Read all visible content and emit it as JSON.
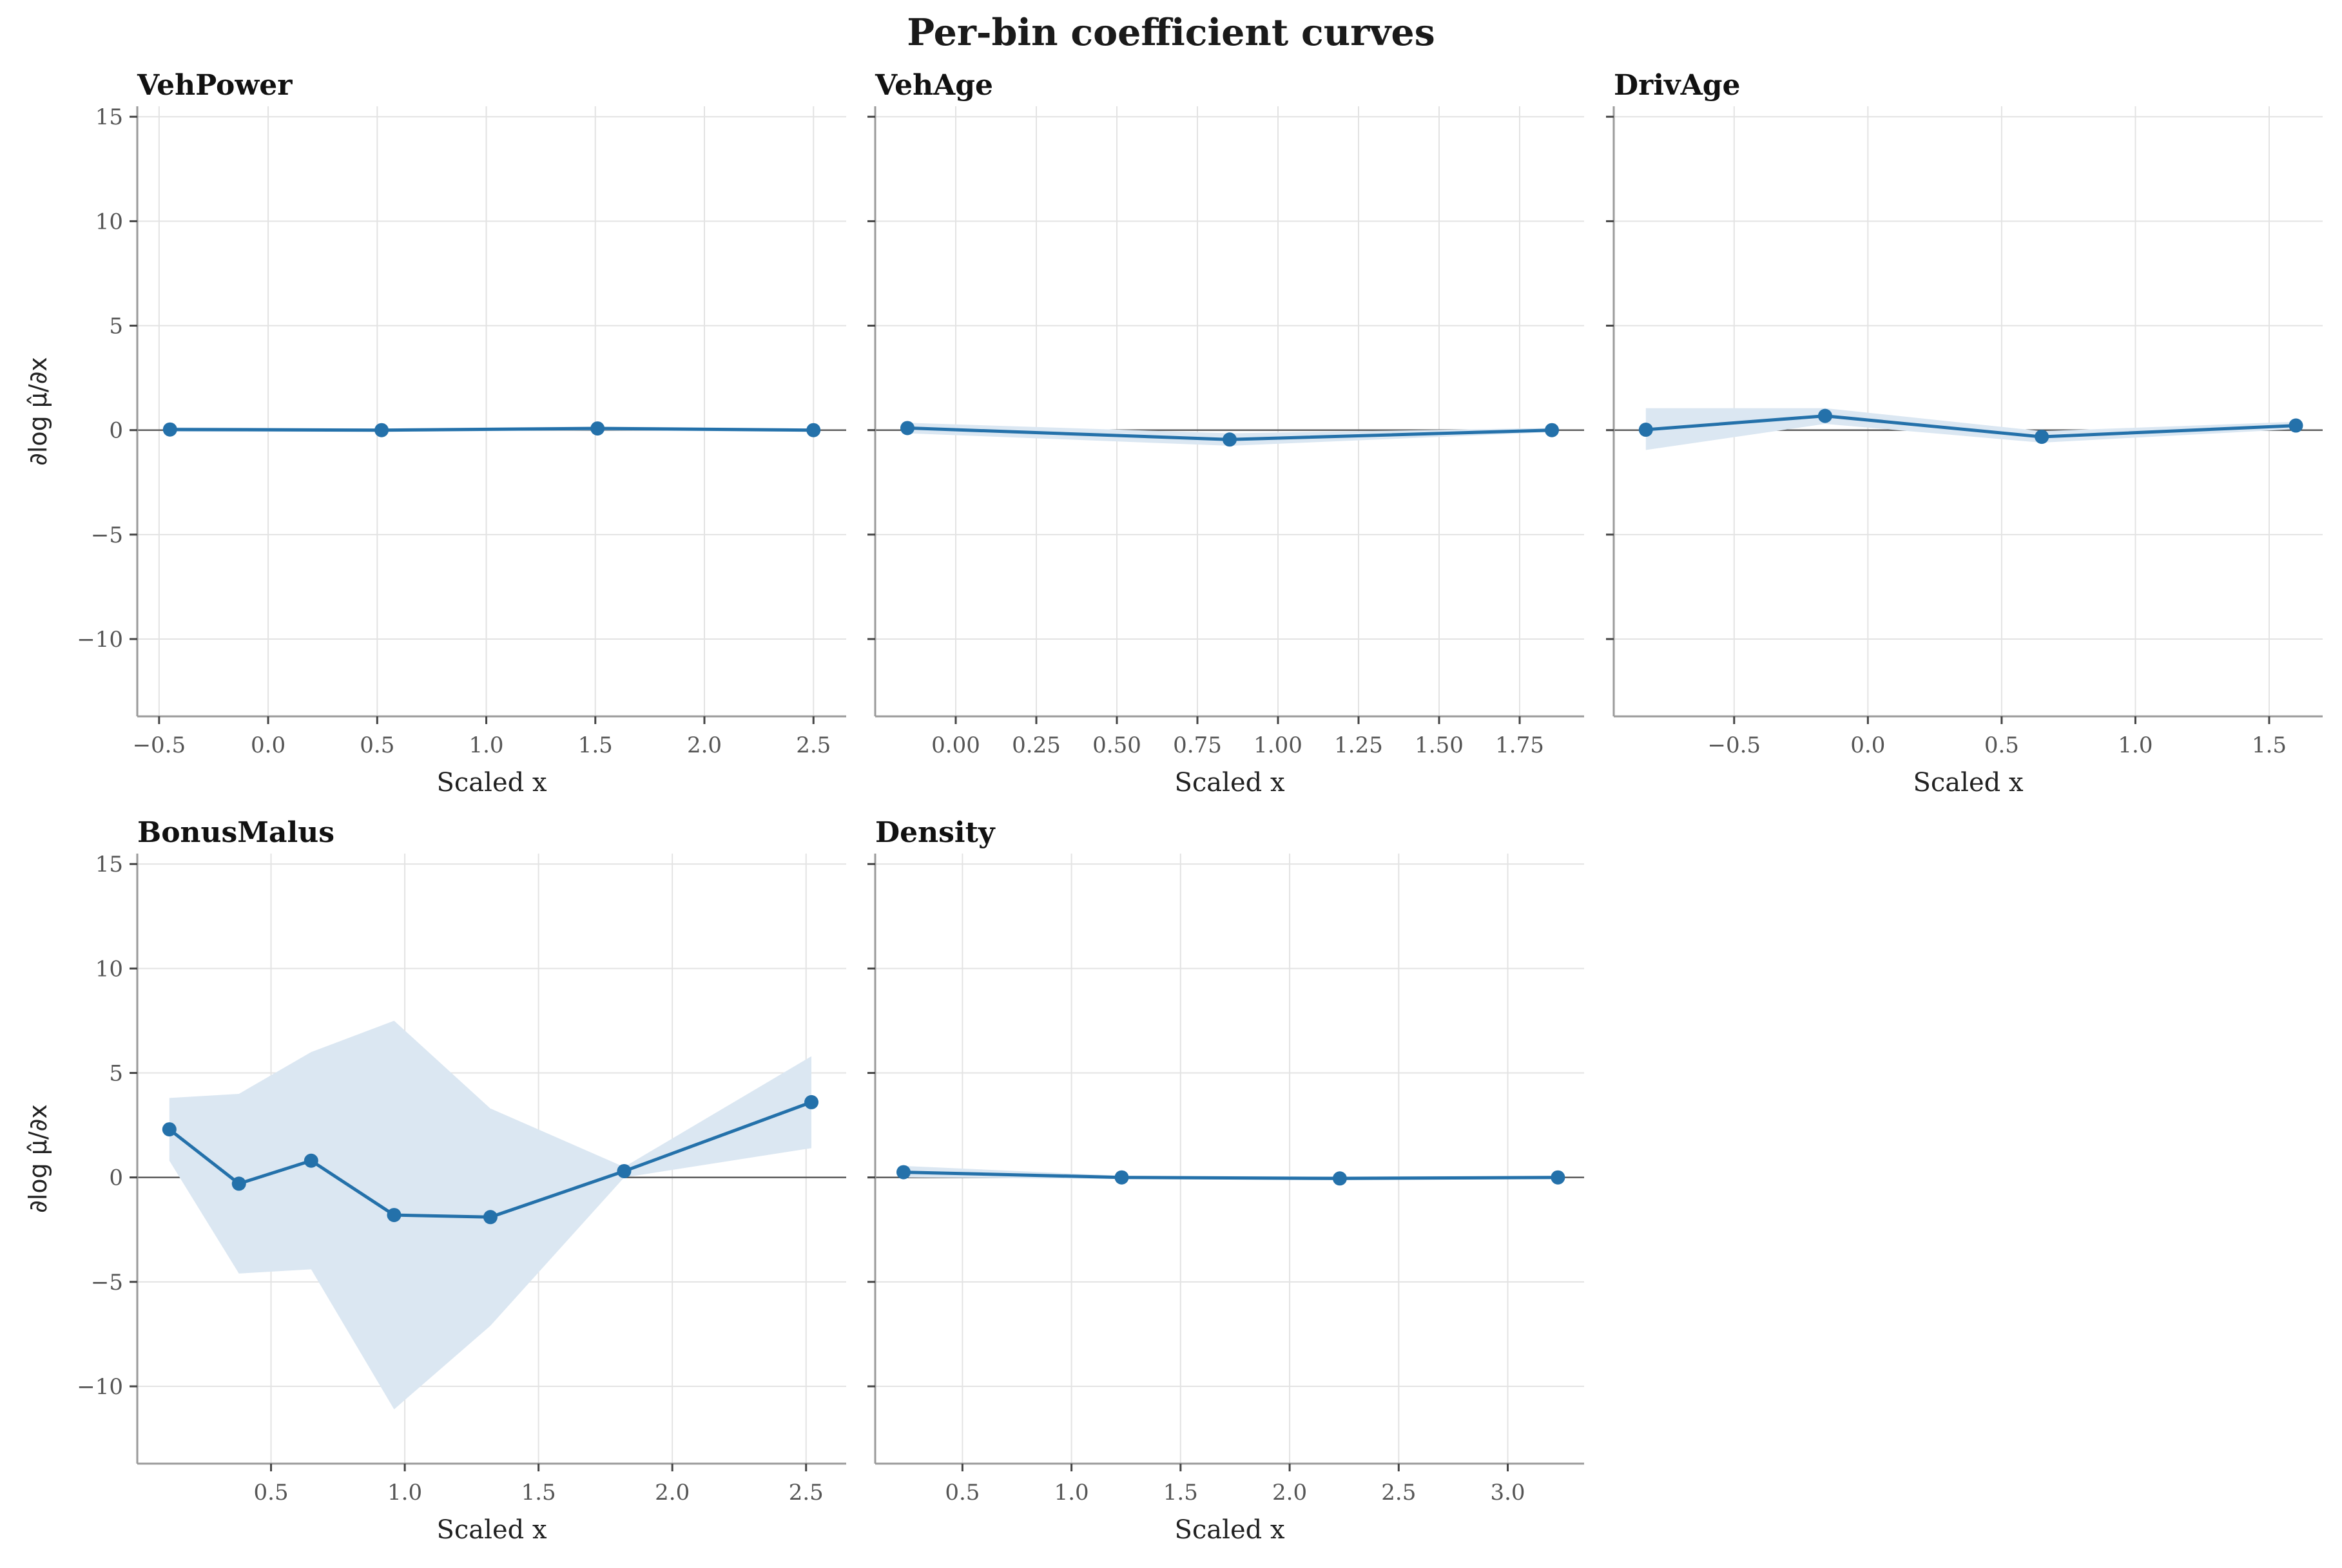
{
  "figure_title": "Per-bin coefficient curves",
  "colors": {
    "line": "#2471aa",
    "band": "#dbe7f2",
    "grid": "#e3e3e3",
    "zero_line": "#555555",
    "spine": "#9a9a9a"
  },
  "chart_data": [
    {
      "type": "line",
      "title": "VehPower",
      "xlabel": "Scaled x",
      "ylabel": "∂log μ̂/∂x",
      "xlim": [
        -0.6,
        2.65
      ],
      "ylim": [
        -13.7,
        15.5
      ],
      "xticks": [
        -0.5,
        0.0,
        0.5,
        1.0,
        1.5,
        2.0,
        2.5
      ],
      "xtick_labels": [
        "−0.5",
        "0.0",
        "0.5",
        "1.0",
        "1.5",
        "2.0",
        "2.5"
      ],
      "yticks": [
        -10,
        -5,
        0,
        5,
        10,
        15
      ],
      "ytick_labels": [
        "−10",
        "−5",
        "0",
        "5",
        "10",
        "15"
      ],
      "x": [
        -0.45,
        0.52,
        1.51,
        2.5
      ],
      "y": [
        0.03,
        0.0,
        0.08,
        0.0
      ],
      "band_lower": [
        -0.08,
        -0.08,
        -0.02,
        -0.08
      ],
      "band_upper": [
        0.14,
        0.08,
        0.18,
        0.08
      ]
    },
    {
      "type": "line",
      "title": "VehAge",
      "xlabel": "Scaled x",
      "ylabel": "",
      "xlim": [
        -0.25,
        1.95
      ],
      "ylim": [
        -13.7,
        15.5
      ],
      "xticks": [
        0.0,
        0.25,
        0.5,
        0.75,
        1.0,
        1.25,
        1.5,
        1.75
      ],
      "xtick_labels": [
        "0.00",
        "0.25",
        "0.50",
        "0.75",
        "1.00",
        "1.25",
        "1.50",
        "1.75"
      ],
      "yticks": [
        -10,
        -5,
        0,
        5,
        10,
        15
      ],
      "ytick_labels": [
        "",
        "",
        "",
        "",
        "",
        ""
      ],
      "x": [
        -0.15,
        0.85,
        1.85
      ],
      "y": [
        0.1,
        -0.45,
        0.0
      ],
      "band_lower": [
        -0.15,
        -0.75,
        -0.1
      ],
      "band_upper": [
        0.35,
        -0.15,
        0.1
      ]
    },
    {
      "type": "line",
      "title": "DrivAge",
      "xlabel": "Scaled x",
      "ylabel": "",
      "xlim": [
        -0.95,
        1.7
      ],
      "ylim": [
        -13.7,
        15.5
      ],
      "xticks": [
        -0.5,
        0.0,
        0.5,
        1.0,
        1.5
      ],
      "xtick_labels": [
        "−0.5",
        "0.0",
        "0.5",
        "1.0",
        "1.5"
      ],
      "yticks": [
        -10,
        -5,
        0,
        5,
        10,
        15
      ],
      "ytick_labels": [
        "",
        "",
        "",
        "",
        "",
        ""
      ],
      "x": [
        -0.83,
        -0.16,
        0.65,
        1.6
      ],
      "y": [
        0.02,
        0.68,
        -0.32,
        0.22
      ],
      "band_lower": [
        -0.95,
        0.3,
        -0.6,
        0.05
      ],
      "band_upper": [
        1.05,
        1.05,
        -0.05,
        0.4
      ]
    },
    {
      "type": "line",
      "title": "BonusMalus",
      "xlabel": "Scaled x",
      "ylabel": "∂log μ̂/∂x",
      "xlim": [
        0.0,
        2.65
      ],
      "ylim": [
        -13.7,
        15.5
      ],
      "xticks": [
        0.5,
        1.0,
        1.5,
        2.0,
        2.5
      ],
      "xtick_labels": [
        "0.5",
        "1.0",
        "1.5",
        "2.0",
        "2.5"
      ],
      "yticks": [
        -10,
        -5,
        0,
        5,
        10,
        15
      ],
      "ytick_labels": [
        "−10",
        "−5",
        "0",
        "5",
        "10",
        "15"
      ],
      "x": [
        0.12,
        0.38,
        0.65,
        0.96,
        1.32,
        1.82,
        2.52
      ],
      "y": [
        2.3,
        -0.3,
        0.8,
        -1.8,
        -1.9,
        0.3,
        3.6
      ],
      "band_lower": [
        0.8,
        -4.6,
        -4.4,
        -11.1,
        -7.1,
        0.0,
        1.4
      ],
      "band_upper": [
        3.8,
        4.0,
        6.0,
        7.5,
        3.3,
        0.5,
        5.8
      ]
    },
    {
      "type": "line",
      "title": "Density",
      "xlabel": "Scaled x",
      "ylabel": "",
      "xlim": [
        0.1,
        3.35
      ],
      "ylim": [
        -13.7,
        15.5
      ],
      "xticks": [
        0.5,
        1.0,
        1.5,
        2.0,
        2.5,
        3.0
      ],
      "xtick_labels": [
        "0.5",
        "1.0",
        "1.5",
        "2.0",
        "2.5",
        "3.0"
      ],
      "yticks": [
        -10,
        -5,
        0,
        5,
        10,
        15
      ],
      "ytick_labels": [
        "",
        "",
        "",
        "",
        "",
        ""
      ],
      "x": [
        0.23,
        1.23,
        2.23,
        3.23
      ],
      "y": [
        0.25,
        0.0,
        -0.05,
        0.0
      ],
      "band_lower": [
        0.0,
        -0.08,
        -0.12,
        -0.08
      ],
      "band_upper": [
        0.55,
        0.08,
        0.05,
        0.08
      ]
    }
  ]
}
